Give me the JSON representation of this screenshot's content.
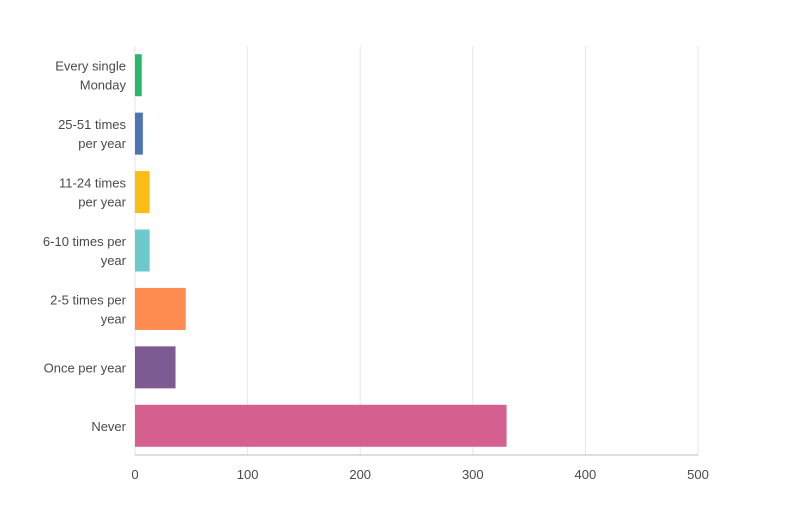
{
  "chart_data": {
    "type": "bar",
    "orientation": "horizontal",
    "categories": [
      [
        "Every single",
        "Monday"
      ],
      [
        "25-51 times",
        "per year"
      ],
      [
        "11-24 times",
        "per year"
      ],
      [
        "6-10 times per",
        "year"
      ],
      [
        "2-5 times per",
        "year"
      ],
      [
        "Once per year"
      ],
      [
        "Never"
      ]
    ],
    "values": [
      6,
      7,
      13,
      13,
      45,
      36,
      330
    ],
    "colors": [
      "#26b96a",
      "#4f74b4",
      "#fbbd13",
      "#6ccacd",
      "#fd8b50",
      "#7d5b92",
      "#d55f8e"
    ],
    "xlim": [
      0,
      500
    ],
    "xticks": [
      0,
      100,
      200,
      300,
      400,
      500
    ],
    "grid": true,
    "title": "",
    "xlabel": "",
    "ylabel": ""
  }
}
